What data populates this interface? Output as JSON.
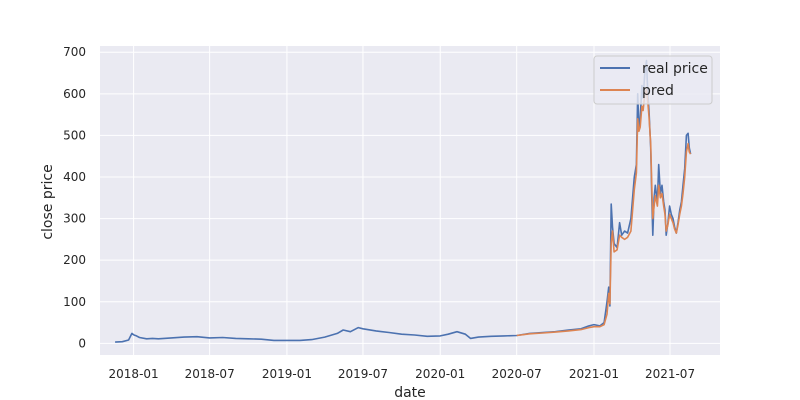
{
  "chart_data": {
    "type": "line",
    "title": "",
    "xlabel": "date",
    "ylabel": "close price",
    "xlim": [
      "2017-10-13",
      "2021-10-28"
    ],
    "ylim": [
      -28,
      715
    ],
    "x_ticks": [
      "2018-01",
      "2018-07",
      "2019-01",
      "2019-07",
      "2020-01",
      "2020-07",
      "2021-01",
      "2021-07"
    ],
    "y_ticks": [
      0,
      100,
      200,
      300,
      400,
      500,
      600,
      700
    ],
    "grid": true,
    "legend": {
      "position": "top-right",
      "entries": [
        "real price",
        "pred"
      ]
    },
    "colors": {
      "real price": "#4c72b0",
      "pred": "#dd8452",
      "background": "#eaeaf2",
      "grid": "#ffffff"
    },
    "series": [
      {
        "name": "real price",
        "points": [
          [
            "2017-11-18",
            3
          ],
          [
            "2017-12-05",
            4
          ],
          [
            "2017-12-20",
            8
          ],
          [
            "2017-12-28",
            24
          ],
          [
            "2018-01-02",
            20
          ],
          [
            "2018-01-08",
            18
          ],
          [
            "2018-01-15",
            14
          ],
          [
            "2018-02-01",
            11
          ],
          [
            "2018-02-15",
            12
          ],
          [
            "2018-03-01",
            11
          ],
          [
            "2018-04-01",
            13
          ],
          [
            "2018-05-01",
            15
          ],
          [
            "2018-06-01",
            16
          ],
          [
            "2018-07-01",
            13
          ],
          [
            "2018-08-01",
            14
          ],
          [
            "2018-09-01",
            12
          ],
          [
            "2018-10-01",
            11
          ],
          [
            "2018-11-01",
            10
          ],
          [
            "2018-12-01",
            7
          ],
          [
            "2019-01-01",
            7
          ],
          [
            "2019-02-01",
            7
          ],
          [
            "2019-03-01",
            9
          ],
          [
            "2019-04-01",
            15
          ],
          [
            "2019-05-01",
            24
          ],
          [
            "2019-05-15",
            32
          ],
          [
            "2019-06-01",
            28
          ],
          [
            "2019-06-20",
            38
          ],
          [
            "2019-07-01",
            35
          ],
          [
            "2019-08-01",
            30
          ],
          [
            "2019-09-01",
            26
          ],
          [
            "2019-10-01",
            22
          ],
          [
            "2019-11-01",
            20
          ],
          [
            "2019-12-01",
            17
          ],
          [
            "2020-01-01",
            18
          ],
          [
            "2020-01-20",
            22
          ],
          [
            "2020-02-10",
            28
          ],
          [
            "2020-03-01",
            22
          ],
          [
            "2020-03-13",
            12
          ],
          [
            "2020-04-01",
            15
          ],
          [
            "2020-05-01",
            17
          ],
          [
            "2020-06-01",
            18
          ],
          [
            "2020-07-01",
            19
          ],
          [
            "2020-08-01",
            24
          ],
          [
            "2020-09-01",
            26
          ],
          [
            "2020-10-01",
            28
          ],
          [
            "2020-11-01",
            32
          ],
          [
            "2020-12-01",
            35
          ],
          [
            "2020-12-20",
            42
          ],
          [
            "2021-01-01",
            45
          ],
          [
            "2021-01-15",
            42
          ],
          [
            "2021-01-25",
            50
          ],
          [
            "2021-02-01",
            100
          ],
          [
            "2021-02-05",
            135
          ],
          [
            "2021-02-08",
            90
          ],
          [
            "2021-02-11",
            335
          ],
          [
            "2021-02-14",
            280
          ],
          [
            "2021-02-18",
            240
          ],
          [
            "2021-02-25",
            230
          ],
          [
            "2021-03-03",
            290
          ],
          [
            "2021-03-08",
            260
          ],
          [
            "2021-03-15",
            270
          ],
          [
            "2021-03-22",
            265
          ],
          [
            "2021-03-30",
            300
          ],
          [
            "2021-04-03",
            350
          ],
          [
            "2021-04-07",
            400
          ],
          [
            "2021-04-12",
            430
          ],
          [
            "2021-04-15",
            600
          ],
          [
            "2021-04-18",
            520
          ],
          [
            "2021-04-21",
            540
          ],
          [
            "2021-04-25",
            620
          ],
          [
            "2021-04-28",
            590
          ],
          [
            "2021-05-02",
            650
          ],
          [
            "2021-05-06",
            680
          ],
          [
            "2021-05-09",
            600
          ],
          [
            "2021-05-12",
            560
          ],
          [
            "2021-05-16",
            470
          ],
          [
            "2021-05-19",
            330
          ],
          [
            "2021-05-21",
            260
          ],
          [
            "2021-05-24",
            350
          ],
          [
            "2021-05-27",
            380
          ],
          [
            "2021-06-01",
            340
          ],
          [
            "2021-06-04",
            430
          ],
          [
            "2021-06-08",
            360
          ],
          [
            "2021-06-12",
            380
          ],
          [
            "2021-06-16",
            340
          ],
          [
            "2021-06-19",
            320
          ],
          [
            "2021-06-22",
            260
          ],
          [
            "2021-06-26",
            290
          ],
          [
            "2021-06-30",
            330
          ],
          [
            "2021-07-04",
            310
          ],
          [
            "2021-07-08",
            300
          ],
          [
            "2021-07-12",
            280
          ],
          [
            "2021-07-16",
            265
          ],
          [
            "2021-07-20",
            290
          ],
          [
            "2021-07-24",
            320
          ],
          [
            "2021-07-28",
            340
          ],
          [
            "2021-08-01",
            380
          ],
          [
            "2021-08-05",
            420
          ],
          [
            "2021-08-09",
            500
          ],
          [
            "2021-08-13",
            505
          ],
          [
            "2021-08-16",
            470
          ],
          [
            "2021-08-19",
            455
          ]
        ]
      },
      {
        "name": "pred",
        "points": [
          [
            "2020-07-01",
            19
          ],
          [
            "2020-08-01",
            23
          ],
          [
            "2020-09-01",
            25
          ],
          [
            "2020-10-01",
            27
          ],
          [
            "2020-11-01",
            30
          ],
          [
            "2020-12-01",
            33
          ],
          [
            "2020-12-20",
            38
          ],
          [
            "2021-01-01",
            40
          ],
          [
            "2021-01-15",
            40
          ],
          [
            "2021-01-25",
            45
          ],
          [
            "2021-02-01",
            70
          ],
          [
            "2021-02-05",
            120
          ],
          [
            "2021-02-08",
            95
          ],
          [
            "2021-02-11",
            240
          ],
          [
            "2021-02-14",
            270
          ],
          [
            "2021-02-18",
            220
          ],
          [
            "2021-02-25",
            225
          ],
          [
            "2021-03-03",
            260
          ],
          [
            "2021-03-08",
            255
          ],
          [
            "2021-03-15",
            250
          ],
          [
            "2021-03-22",
            255
          ],
          [
            "2021-03-30",
            270
          ],
          [
            "2021-04-03",
            320
          ],
          [
            "2021-04-07",
            370
          ],
          [
            "2021-04-12",
            410
          ],
          [
            "2021-04-15",
            540
          ],
          [
            "2021-04-18",
            510
          ],
          [
            "2021-04-21",
            520
          ],
          [
            "2021-04-25",
            570
          ],
          [
            "2021-04-28",
            560
          ],
          [
            "2021-05-02",
            600
          ],
          [
            "2021-05-06",
            610
          ],
          [
            "2021-05-09",
            580
          ],
          [
            "2021-05-12",
            545
          ],
          [
            "2021-05-16",
            480
          ],
          [
            "2021-05-19",
            360
          ],
          [
            "2021-05-21",
            300
          ],
          [
            "2021-05-24",
            330
          ],
          [
            "2021-05-27",
            355
          ],
          [
            "2021-06-01",
            330
          ],
          [
            "2021-06-04",
            380
          ],
          [
            "2021-06-08",
            350
          ],
          [
            "2021-06-12",
            360
          ],
          [
            "2021-06-16",
            330
          ],
          [
            "2021-06-19",
            310
          ],
          [
            "2021-06-22",
            270
          ],
          [
            "2021-06-26",
            285
          ],
          [
            "2021-06-30",
            310
          ],
          [
            "2021-07-04",
            300
          ],
          [
            "2021-07-08",
            290
          ],
          [
            "2021-07-12",
            275
          ],
          [
            "2021-07-16",
            265
          ],
          [
            "2021-07-20",
            285
          ],
          [
            "2021-07-24",
            310
          ],
          [
            "2021-07-28",
            330
          ],
          [
            "2021-08-01",
            360
          ],
          [
            "2021-08-05",
            400
          ],
          [
            "2021-08-09",
            460
          ],
          [
            "2021-08-13",
            480
          ],
          [
            "2021-08-16",
            460
          ],
          [
            "2021-08-19",
            455
          ]
        ]
      }
    ]
  }
}
